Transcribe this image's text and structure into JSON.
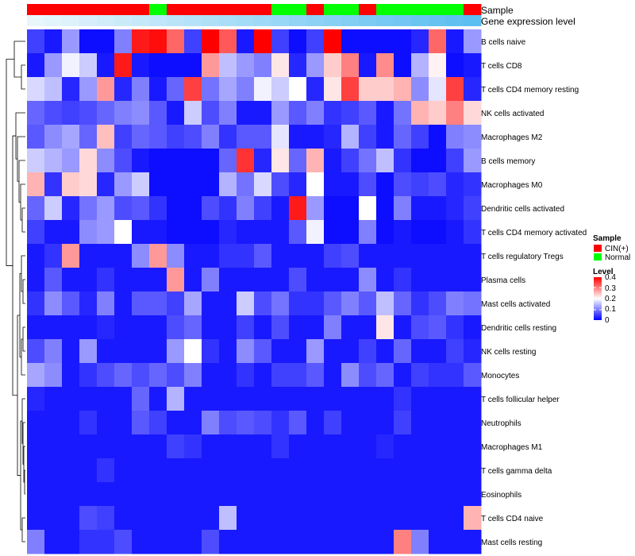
{
  "chart_data": {
    "type": "heatmap",
    "annotation_tracks": [
      {
        "name": "Sample",
        "values": [
          "CIN(+)",
          "CIN(+)",
          "CIN(+)",
          "CIN(+)",
          "CIN(+)",
          "CIN(+)",
          "CIN(+)",
          "Normal",
          "CIN(+)",
          "CIN(+)",
          "CIN(+)",
          "CIN(+)",
          "CIN(+)",
          "CIN(+)",
          "Normal",
          "Normal",
          "CIN(+)",
          "Normal",
          "Normal",
          "CIN(+)",
          "Normal",
          "Normal",
          "Normal",
          "Normal",
          "Normal",
          "CIN(+)"
        ]
      },
      {
        "name": "Gene expression level",
        "values": [
          0,
          0.04,
          0.08,
          0.12,
          0.16,
          0.2,
          0.24,
          0.28,
          0.32,
          0.36,
          0.4,
          0.44,
          0.48,
          0.52,
          0.56,
          0.6,
          0.64,
          0.68,
          0.72,
          0.76,
          0.8,
          0.84,
          0.88,
          0.92,
          0.96,
          1.0
        ]
      }
    ],
    "rows": [
      "B cells naive",
      "T cells CD8",
      "T cells CD4 memory resting",
      "NK cells activated",
      "Macrophages M2",
      "B cells memory",
      "Macrophages M0",
      "Dendritic cells activated",
      "T cells CD4 memory activated",
      "T cells regulatory  Tregs",
      "Plasma cells",
      "Mast cells activated",
      "Dendritic cells resting",
      "NK cells resting",
      "Monocytes",
      "T cells follicular helper",
      "Neutrophils",
      "Macrophages M1",
      "T cells gamma delta",
      "Eosinophils",
      "T cells CD4 naive",
      "Mast cells resting"
    ],
    "values": [
      [
        0.05,
        0.02,
        0.12,
        0.01,
        0.01,
        0.1,
        0.38,
        0.39,
        0.32,
        0.05,
        0.4,
        0.33,
        0.02,
        0.4,
        0.05,
        0.01,
        0.05,
        0.4,
        0.01,
        0.01,
        0.01,
        0.01,
        0.03,
        0.32,
        0.02,
        0.12
      ],
      [
        0.02,
        0.12,
        0.19,
        0.16,
        0.02,
        0.38,
        0.02,
        0.01,
        0.01,
        0.01,
        0.28,
        0.15,
        0.12,
        0.1,
        0.22,
        0.03,
        0.12,
        0.24,
        0.3,
        0.02,
        0.29,
        0.01,
        0.14,
        0.21,
        0.01,
        0.02
      ],
      [
        0.17,
        0.15,
        0.03,
        0.12,
        0.28,
        0.03,
        0.1,
        0.02,
        0.08,
        0.35,
        0.09,
        0.13,
        0.1,
        0.19,
        0.16,
        0.2,
        0.03,
        0.22,
        0.35,
        0.24,
        0.24,
        0.26,
        0.11,
        0.18,
        0.35,
        0.03
      ],
      [
        0.08,
        0.06,
        0.05,
        0.06,
        0.08,
        0.1,
        0.11,
        0.07,
        0.02,
        0.16,
        0.06,
        0.1,
        0.02,
        0.02,
        0.12,
        0.07,
        0.1,
        0.04,
        0.05,
        0.07,
        0.02,
        0.09,
        0.26,
        0.24,
        0.3,
        0.23
      ],
      [
        0.07,
        0.11,
        0.13,
        0.08,
        0.25,
        0.05,
        0.08,
        0.07,
        0.05,
        0.06,
        0.1,
        0.04,
        0.07,
        0.07,
        0.18,
        0.02,
        0.02,
        0.03,
        0.14,
        0.05,
        0.02,
        0.08,
        0.05,
        0.01,
        0.1,
        0.11
      ],
      [
        0.16,
        0.14,
        0.12,
        0.23,
        0.11,
        0.06,
        0.02,
        0.01,
        0.01,
        0.01,
        0.01,
        0.08,
        0.36,
        0.03,
        0.22,
        0.08,
        0.26,
        0.02,
        0.05,
        0.09,
        0.15,
        0.04,
        0.01,
        0.01,
        0.05,
        0.12
      ],
      [
        0.26,
        0.04,
        0.24,
        0.23,
        0.03,
        0.12,
        0.16,
        0.01,
        0.01,
        0.01,
        0.01,
        0.14,
        0.09,
        0.17,
        0.06,
        0.03,
        0.2,
        0.02,
        0.02,
        0.06,
        0.01,
        0.06,
        0.05,
        0.06,
        0.03,
        0.04
      ],
      [
        0.08,
        0.16,
        0.03,
        0.09,
        0.12,
        0.06,
        0.07,
        0.04,
        0.01,
        0.01,
        0.06,
        0.04,
        0.1,
        0.05,
        0.02,
        0.38,
        0.12,
        0.01,
        0.01,
        0.2,
        0.01,
        0.1,
        0.02,
        0.02,
        0.03,
        0.05
      ],
      [
        0.05,
        0.02,
        0.02,
        0.11,
        0.12,
        0.2,
        0.02,
        0.02,
        0.01,
        0.01,
        0.01,
        0.03,
        0.02,
        0.02,
        0.02,
        0.07,
        0.19,
        0.01,
        0.01,
        0.1,
        0.01,
        0.02,
        0.01,
        0.01,
        0.02,
        0.04
      ],
      [
        0.02,
        0.04,
        0.28,
        0.02,
        0.02,
        0.02,
        0.11,
        0.28,
        0.11,
        0.02,
        0.02,
        0.04,
        0.04,
        0.07,
        0.02,
        0.02,
        0.02,
        0.05,
        0.06,
        0.02,
        0.02,
        0.02,
        0.02,
        0.02,
        0.02,
        0.02
      ],
      [
        0.02,
        0.07,
        0.02,
        0.02,
        0.04,
        0.02,
        0.02,
        0.02,
        0.28,
        0.02,
        0.1,
        0.02,
        0.02,
        0.02,
        0.02,
        0.06,
        0.02,
        0.02,
        0.02,
        0.11,
        0.02,
        0.04,
        0.02,
        0.02,
        0.02,
        0.02
      ],
      [
        0.04,
        0.11,
        0.07,
        0.03,
        0.1,
        0.02,
        0.07,
        0.07,
        0.05,
        0.13,
        0.02,
        0.02,
        0.16,
        0.06,
        0.09,
        0.04,
        0.04,
        0.07,
        0.1,
        0.07,
        0.15,
        0.08,
        0.04,
        0.06,
        0.1,
        0.09
      ],
      [
        0.02,
        0.02,
        0.02,
        0.02,
        0.03,
        0.02,
        0.02,
        0.02,
        0.06,
        0.08,
        0.02,
        0.02,
        0.05,
        0.02,
        0.06,
        0.02,
        0.02,
        0.1,
        0.02,
        0.02,
        0.22,
        0.02,
        0.06,
        0.07,
        0.04,
        0.02
      ],
      [
        0.06,
        0.1,
        0.02,
        0.12,
        0.02,
        0.02,
        0.02,
        0.02,
        0.12,
        0.2,
        0.04,
        0.02,
        0.11,
        0.07,
        0.02,
        0.02,
        0.12,
        0.02,
        0.02,
        0.05,
        0.02,
        0.08,
        0.02,
        0.02,
        0.05,
        0.03
      ],
      [
        0.13,
        0.11,
        0.02,
        0.04,
        0.06,
        0.08,
        0.06,
        0.08,
        0.06,
        0.1,
        0.02,
        0.02,
        0.04,
        0.02,
        0.05,
        0.05,
        0.07,
        0.02,
        0.11,
        0.06,
        0.08,
        0.02,
        0.05,
        0.04,
        0.04,
        0.07
      ],
      [
        0.03,
        0.02,
        0.02,
        0.02,
        0.02,
        0.02,
        0.08,
        0.02,
        0.14,
        0.02,
        0.02,
        0.02,
        0.02,
        0.02,
        0.02,
        0.02,
        0.02,
        0.02,
        0.02,
        0.02,
        0.02,
        0.04,
        0.02,
        0.02,
        0.02,
        0.02
      ],
      [
        0.02,
        0.02,
        0.02,
        0.04,
        0.02,
        0.02,
        0.07,
        0.05,
        0.02,
        0.02,
        0.1,
        0.06,
        0.07,
        0.06,
        0.04,
        0.07,
        0.02,
        0.05,
        0.02,
        0.02,
        0.02,
        0.05,
        0.02,
        0.02,
        0.02,
        0.02
      ],
      [
        0.02,
        0.02,
        0.02,
        0.02,
        0.02,
        0.02,
        0.02,
        0.02,
        0.05,
        0.04,
        0.02,
        0.02,
        0.02,
        0.02,
        0.04,
        0.02,
        0.02,
        0.02,
        0.02,
        0.02,
        0.03,
        0.02,
        0.02,
        0.02,
        0.02,
        0.02
      ],
      [
        0.02,
        0.02,
        0.02,
        0.02,
        0.04,
        0.02,
        0.02,
        0.02,
        0.02,
        0.02,
        0.02,
        0.02,
        0.02,
        0.02,
        0.02,
        0.02,
        0.02,
        0.02,
        0.02,
        0.02,
        0.02,
        0.02,
        0.02,
        0.02,
        0.02,
        0.02
      ],
      [
        0.02,
        0.02,
        0.02,
        0.02,
        0.02,
        0.02,
        0.02,
        0.02,
        0.02,
        0.02,
        0.02,
        0.02,
        0.02,
        0.02,
        0.02,
        0.02,
        0.02,
        0.02,
        0.02,
        0.02,
        0.02,
        0.02,
        0.02,
        0.02,
        0.02,
        0.02
      ],
      [
        0.02,
        0.02,
        0.02,
        0.06,
        0.05,
        0.02,
        0.02,
        0.02,
        0.02,
        0.02,
        0.02,
        0.15,
        0.02,
        0.02,
        0.02,
        0.02,
        0.02,
        0.02,
        0.02,
        0.02,
        0.02,
        0.02,
        0.02,
        0.02,
        0.02,
        0.26
      ],
      [
        0.1,
        0.02,
        0.02,
        0.04,
        0.04,
        0.06,
        0.02,
        0.02,
        0.02,
        0.02,
        0.06,
        0.02,
        0.02,
        0.02,
        0.02,
        0.02,
        0.02,
        0.02,
        0.02,
        0.02,
        0.02,
        0.3,
        0.1,
        0.02,
        0.02,
        0.02
      ]
    ],
    "color_scale": {
      "min": 0,
      "max": 0.4,
      "stops": [
        "#0000ff",
        "#ffffff",
        "#ff0000"
      ]
    },
    "legends": {
      "sample": {
        "title": "Sample",
        "items": [
          {
            "label": "CIN(+)",
            "color": "#ff0000"
          },
          {
            "label": "Normal",
            "color": "#00ff00"
          }
        ]
      },
      "level": {
        "title": "Level",
        "ticks": [
          "0.4",
          "0.3",
          "0.2",
          "0.1",
          "0"
        ]
      }
    },
    "dendrogram": "row",
    "xlabel": "",
    "ylabel": ""
  }
}
